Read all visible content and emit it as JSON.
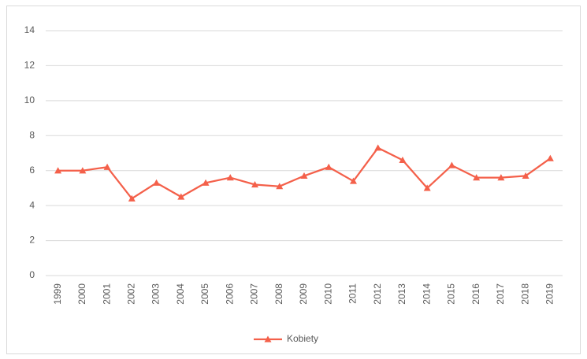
{
  "chart_data": {
    "type": "line",
    "categories": [
      "1999",
      "2000",
      "2001",
      "2002",
      "2003",
      "2004",
      "2005",
      "2006",
      "2007",
      "2008",
      "2009",
      "2010",
      "2011",
      "2012",
      "2013",
      "2014",
      "2015",
      "2016",
      "2017",
      "2018",
      "2019"
    ],
    "series": [
      {
        "name": "Kobiety",
        "color": "#f4604a",
        "values": [
          6.0,
          6.0,
          6.2,
          4.4,
          5.3,
          4.5,
          5.3,
          5.6,
          5.2,
          5.1,
          5.7,
          6.2,
          5.4,
          7.3,
          6.6,
          5.0,
          6.3,
          5.6,
          5.6,
          5.7,
          6.7
        ]
      }
    ],
    "ylim": [
      0,
      14
    ],
    "yticks": [
      0,
      2,
      4,
      6,
      8,
      10,
      12,
      14
    ],
    "grid": true,
    "legend": "bottom"
  }
}
